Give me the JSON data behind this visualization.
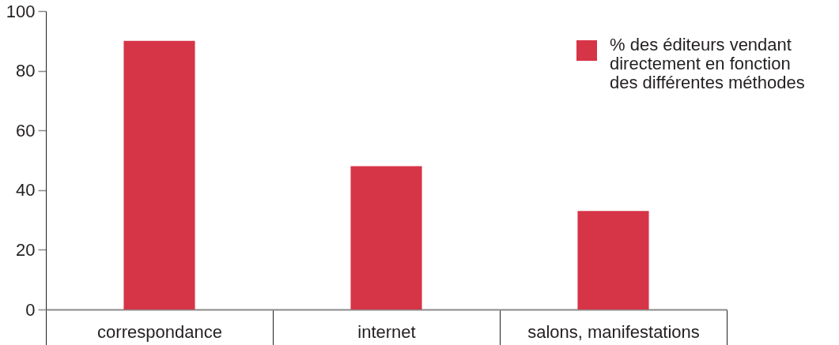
{
  "chart_data": {
    "type": "bar",
    "categories": [
      "correspondance",
      "internet",
      "salons, manifestations"
    ],
    "series": [
      {
        "name": "% des éditeurs vendant directement en fonction des différentes méthodes",
        "color": "#d63447",
        "values": [
          90,
          48,
          33
        ]
      }
    ],
    "ylim": [
      0,
      100
    ],
    "yticks": [
      0,
      20,
      40,
      60,
      80,
      100
    ],
    "legend": "top right"
  }
}
